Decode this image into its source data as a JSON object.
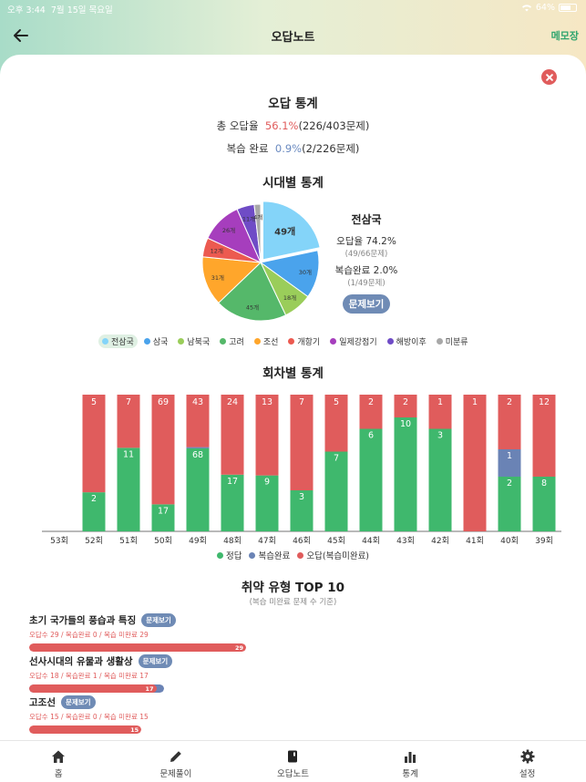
{
  "status": {
    "time": "오후 3:44",
    "date": "7월 15일 목요일",
    "battery": "64%"
  },
  "nav": {
    "title": "오답노트",
    "memo": "메모장"
  },
  "summary": {
    "title": "오답 통계",
    "wrong_label": "총 오답율",
    "wrong_rate": "56.1%",
    "wrong_detail": "(226/403문제)",
    "review_label": "복습 완료",
    "review_rate": "0.9%",
    "review_detail": "(2/226문제)"
  },
  "era": {
    "title": "시대별 통계",
    "selected": {
      "name": "전삼국",
      "wrong_rate": "오답율 74.2%",
      "wrong_detail": "(49/66문제)",
      "review_rate": "복습완료 2.0%",
      "review_detail": "(1/49문제)",
      "button": "문제보기"
    },
    "pie": [
      {
        "label": "전삼국",
        "count": 49,
        "text": "49개",
        "color": "#84d4f9"
      },
      {
        "label": "삼국",
        "count": 30,
        "text": "30개",
        "color": "#4aa3ec"
      },
      {
        "label": "남북국",
        "count": 18,
        "text": "18개",
        "color": "#9acd5a"
      },
      {
        "label": "고려",
        "count": 45,
        "text": "45개",
        "color": "#55b86a"
      },
      {
        "label": "조선",
        "count": 31,
        "text": "31개",
        "color": "#ffa62b"
      },
      {
        "label": "개항기",
        "count": 12,
        "text": "12개",
        "color": "#ec5a50"
      },
      {
        "label": "일제강점기",
        "count": 26,
        "text": "26개",
        "color": "#a63ebd"
      },
      {
        "label": "해방이후",
        "count": 11,
        "text": "11개",
        "color": "#6f4cc6"
      },
      {
        "label": "미분류",
        "count": 4,
        "text": "4개",
        "color": "#a8a8a8"
      }
    ]
  },
  "session": {
    "title": "회차별 통계",
    "legend": {
      "correct": "정답",
      "reviewed": "복습완료",
      "wrong": "오답(복습미완료)"
    },
    "colors": {
      "correct": "#3fb86d",
      "reviewed": "#6a83b5",
      "wrong": "#e05c5c"
    }
  },
  "chart_data": {
    "type": "bar",
    "stacked": true,
    "categories": [
      "53회",
      "52회",
      "51회",
      "50회",
      "49회",
      "48회",
      "47회",
      "46회",
      "45회",
      "44회",
      "43회",
      "42회",
      "41회",
      "40회",
      "39회"
    ],
    "series": [
      {
        "name": "정답",
        "values": [
          0,
          2,
          11,
          17,
          68,
          17,
          9,
          3,
          7,
          6,
          10,
          3,
          0,
          2,
          8
        ]
      },
      {
        "name": "복습완료",
        "values": [
          0,
          0,
          0,
          0,
          1,
          0,
          0,
          0,
          0,
          0,
          0,
          0,
          0,
          1,
          0
        ]
      },
      {
        "name": "오답(복습미완료)",
        "values": [
          0,
          5,
          7,
          69,
          43,
          24,
          13,
          7,
          5,
          2,
          2,
          1,
          1,
          2,
          12
        ]
      }
    ]
  },
  "weak": {
    "title": "취약 유형 TOP 10",
    "subtitle": "(복습 미완료 문제 수 기준)",
    "button": "문제보기",
    "items": [
      {
        "name": "초기 국가들의 풍습과 특징",
        "detail": "오답수 29 / 복습완료 0 / 복습 미완료 29",
        "wrong": 29,
        "reviewed": 0,
        "remaining": 29,
        "value_label": "29"
      },
      {
        "name": "선사시대의 유물과 생활상",
        "detail": "오답수 18 / 복습완료 1 / 복습 미완료 17",
        "wrong": 18,
        "reviewed": 1,
        "remaining": 17,
        "value_label": "17"
      },
      {
        "name": "고조선",
        "detail": "오답수 15 / 복습완료 0 / 복습 미완료 15",
        "wrong": 15,
        "reviewed": 0,
        "remaining": 15,
        "value_label": "15"
      }
    ]
  },
  "tabs": [
    {
      "label": "홈",
      "icon": "home-icon"
    },
    {
      "label": "문제풀이",
      "icon": "pencil-icon"
    },
    {
      "label": "오답노트",
      "icon": "notebook-icon"
    },
    {
      "label": "통계",
      "icon": "bar-chart-icon"
    },
    {
      "label": "설정",
      "icon": "gear-icon"
    }
  ]
}
